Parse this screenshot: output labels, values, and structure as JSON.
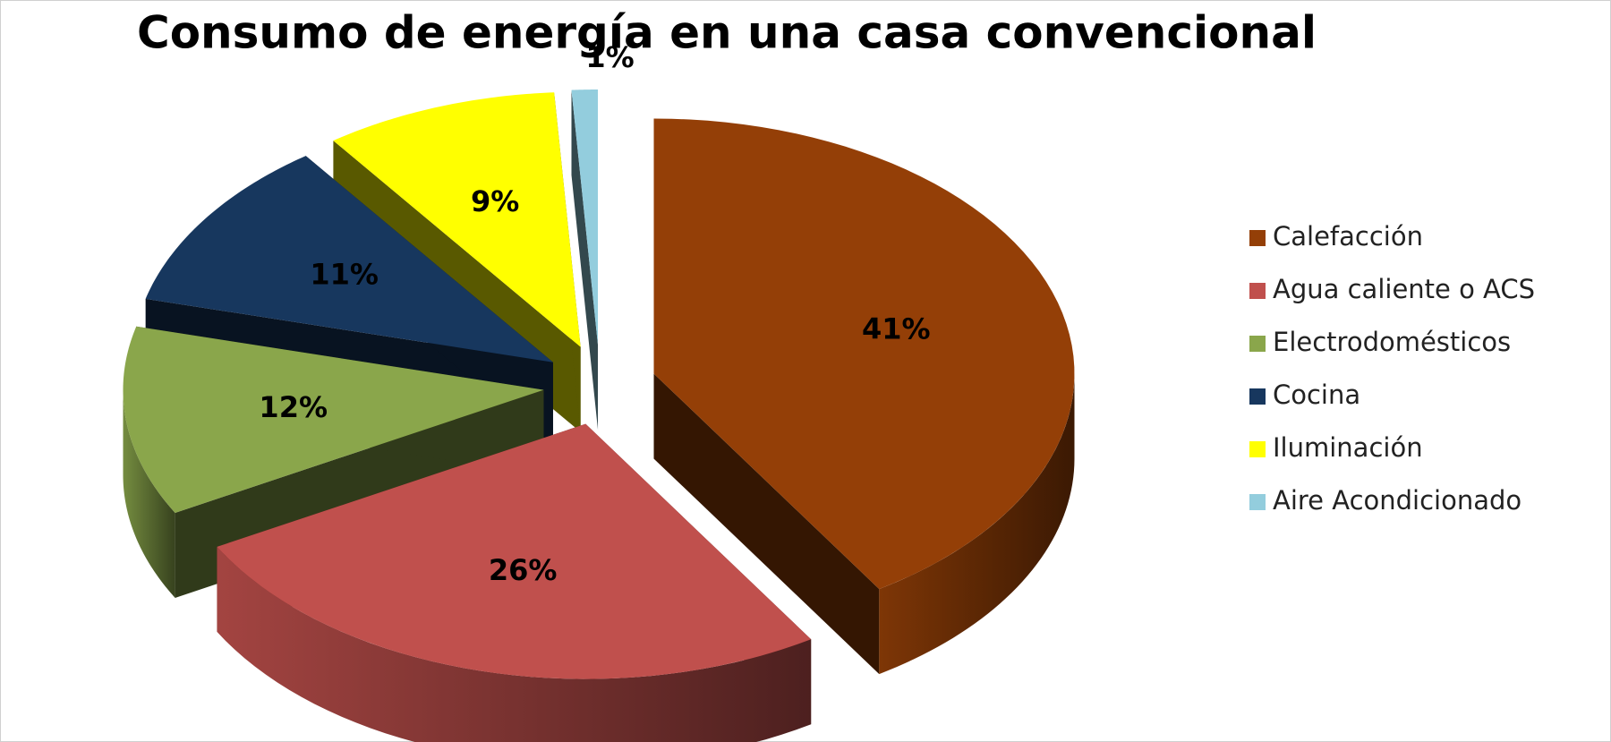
{
  "chart_data": {
    "type": "pie",
    "title": "Consumo de energía en una casa convencional",
    "categories": [
      "Calefacción",
      "Agua caliente  o ACS",
      "Electrodomésticos",
      "Cocina",
      "Iluminación",
      "Aire Acondicionado"
    ],
    "values": [
      41,
      26,
      12,
      11,
      9,
      1
    ],
    "value_labels": [
      "41%",
      "26%",
      "12%",
      "11%",
      "9%",
      "1%"
    ],
    "colors": [
      "#943f07",
      "#c0504d",
      "#8aa64b",
      "#17375e",
      "#ffff00",
      "#93cddd"
    ]
  }
}
